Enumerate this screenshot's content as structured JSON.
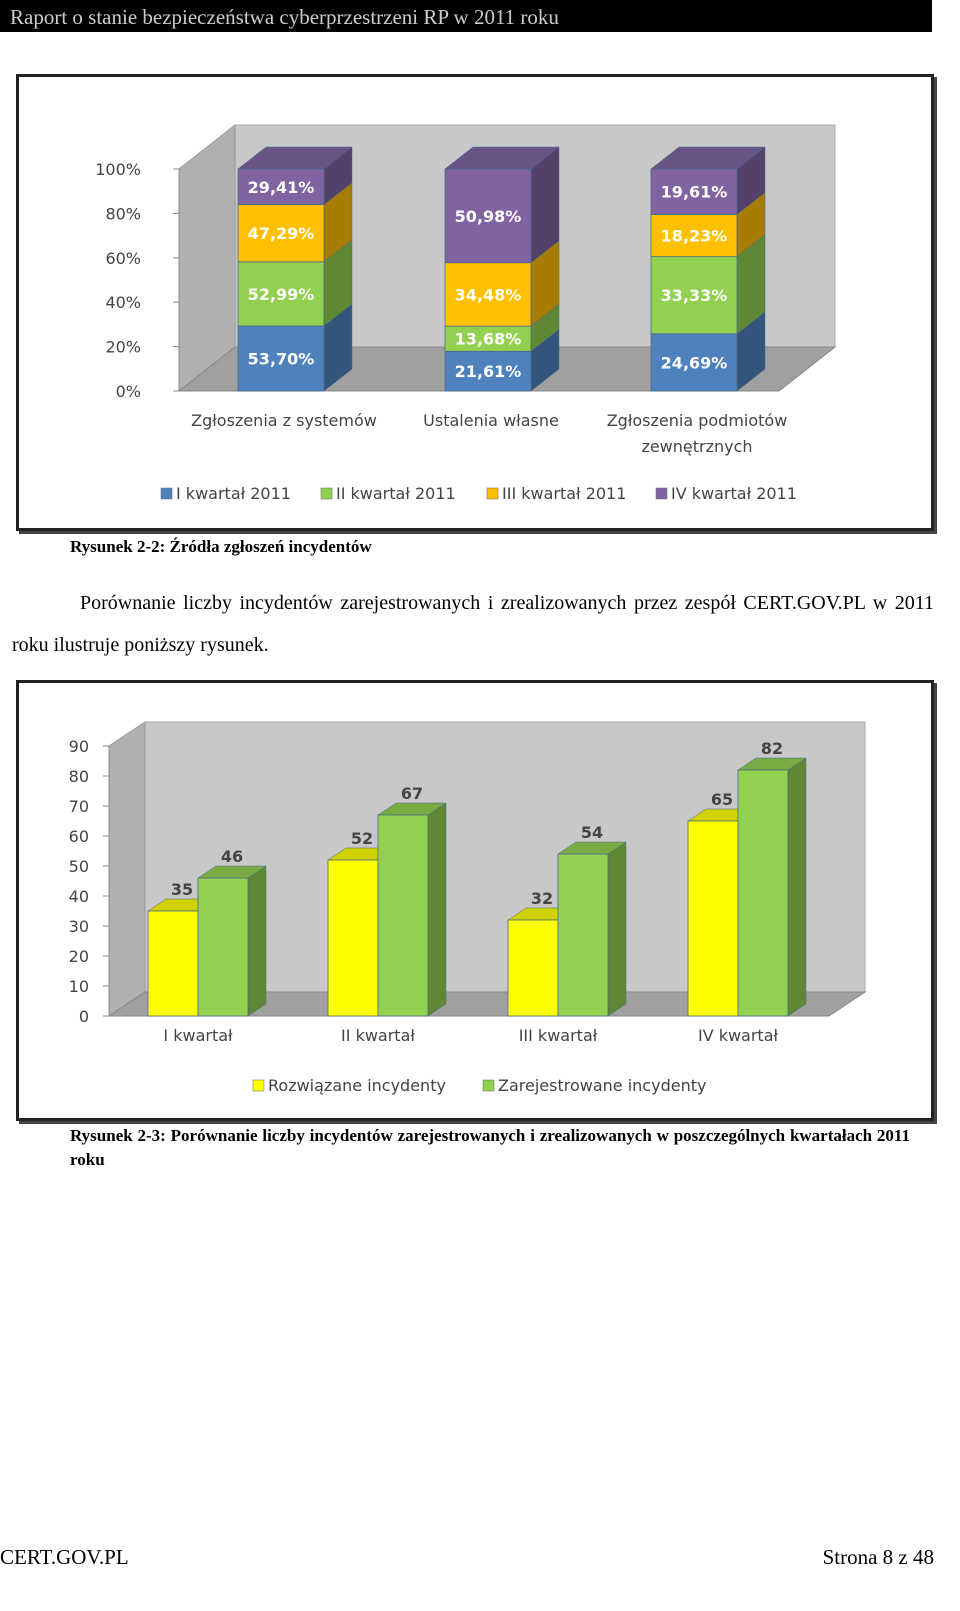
{
  "header": {
    "title": "Raport o stanie bezpieczeństwa cyberprzestrzeni RP w 2011 roku"
  },
  "chart_data": [
    {
      "type": "bar",
      "stacking": "percent",
      "categories": [
        "Zgłoszenia z systemów",
        "Ustalenia własne",
        "Zgłoszenia podmiotów zewnętrznych"
      ],
      "series": [
        {
          "name": "I kwartał 2011",
          "color": "#4f81bd",
          "values": [
            53.7,
            21.61,
            24.69
          ],
          "value_labels": [
            "53,70%",
            "21,61%",
            "24,69%"
          ]
        },
        {
          "name": "II kwartał 2011",
          "color": "#92d050",
          "values": [
            52.99,
            13.68,
            33.33
          ],
          "value_labels": [
            "52,99%",
            "13,68%",
            "33,33%"
          ]
        },
        {
          "name": "III kwartał 2011",
          "color": "#ffc000",
          "values": [
            47.29,
            34.48,
            18.23
          ],
          "value_labels": [
            "47,29%",
            "34,48%",
            "18,23%"
          ]
        },
        {
          "name": "IV kwartał 2011",
          "color": "#8064a2",
          "values": [
            29.41,
            50.98,
            19.61
          ],
          "value_labels": [
            "29,41%",
            "50,98%",
            "19,61%"
          ]
        }
      ],
      "ylim": [
        0,
        100
      ],
      "yticks": [
        {
          "value": 0,
          "label": "0%"
        },
        {
          "value": 20,
          "label": "20%"
        },
        {
          "value": 40,
          "label": "40%"
        },
        {
          "value": 60,
          "label": "60%"
        },
        {
          "value": 80,
          "label": "80%"
        },
        {
          "value": 100,
          "label": "100%"
        }
      ],
      "legend": "bottom"
    },
    {
      "type": "bar",
      "categories": [
        "I kwartał",
        "II kwartał",
        "III kwartał",
        "IV kwartał"
      ],
      "series": [
        {
          "name": "Rozwiązane incydenty",
          "color": "#ffff00",
          "values": [
            35,
            52,
            32,
            65
          ]
        },
        {
          "name": "Zarejestrowane incydenty",
          "color": "#92d050",
          "values": [
            46,
            67,
            54,
            82
          ]
        }
      ],
      "ylim": [
        0,
        90
      ],
      "yticks": [
        0,
        10,
        20,
        30,
        40,
        50,
        60,
        70,
        80,
        90
      ],
      "legend": "bottom"
    }
  ],
  "captions": [
    "Rysunek 2-2: Źródła zgłoszeń incydentów",
    "Rysunek 2-3: Porównanie liczby incydentów zarejestrowanych i zrealizowanych w poszczególnych kwartałach 2011 roku"
  ],
  "paragraph": "Porównanie liczby incydentów zarejestrowanych i zrealizowanych przez zespół CERT.GOV.PL w 2011 roku ilustruje poniższy rysunek.",
  "footer": {
    "left": "CERT.GOV.PL",
    "right": "Strona 8 z 48"
  }
}
